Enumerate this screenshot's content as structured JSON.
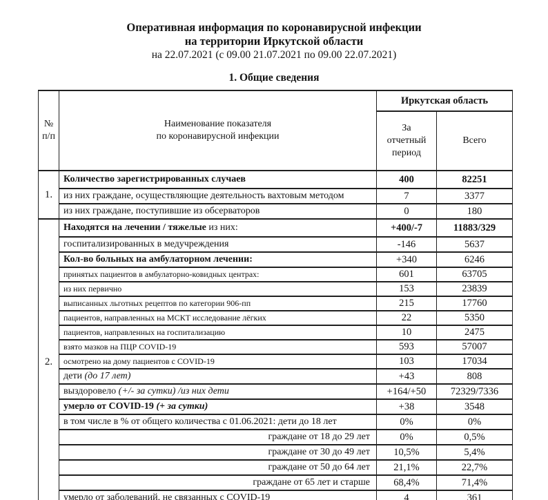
{
  "title": {
    "line1": "Оперативная информация по коронавирусной инфекции",
    "line2": "на территории Иркутской области",
    "line3": "на 22.07.2021 (с 09.00 21.07.2021 по 09.00 22.07.2021)",
    "section_heading": "1. Общие сведения"
  },
  "table": {
    "header": {
      "col_number": "№\nп/п",
      "col_name": "Наименование показателя\nпо коронавирусной инфекции",
      "region": "Иркутская область",
      "col_period": "За\nотчетный\nпериод",
      "col_total": "Всего"
    },
    "sections": [
      {
        "number": "1.",
        "rows": [
          {
            "label": [
              {
                "t": "Количество зарегистрированных случаев",
                "b": true
              }
            ],
            "period": "400",
            "total": "82251",
            "values_bold": true
          },
          {
            "label": [
              {
                "t": "из них граждане, осуществляющие деятельность вахтовым методом"
              }
            ],
            "align": "justify",
            "period": "7",
            "total": "3377"
          },
          {
            "label": [
              {
                "t": "из них граждане, поступившие из обсерваторов"
              }
            ],
            "period": "0",
            "total": "180"
          }
        ]
      },
      {
        "number": "2.",
        "rows": [
          {
            "label": [
              {
                "t": "Находятся на лечении / тяжелые",
                "b": true
              },
              {
                "t": " из них:"
              }
            ],
            "period": "+400/-7",
            "total": "11883/329",
            "values_bold": true
          },
          {
            "label": [
              {
                "t": "госпитализированных в медучреждения"
              }
            ],
            "period": "-146",
            "total": "5637"
          },
          {
            "label": [
              {
                "t": "Кол-во больных на амбулаторном лечении:",
                "b": true
              }
            ],
            "period": "+340",
            "total": "6246"
          },
          {
            "label": [
              {
                "t": "принятых пациентов в амбулаторно-ковидных центрах:"
              }
            ],
            "size": "small",
            "period": "601",
            "total": "63705"
          },
          {
            "label": [
              {
                "t": "из них первично"
              }
            ],
            "size": "small",
            "period": "153",
            "total": "23839"
          },
          {
            "label": [
              {
                "t": "выписанных льготных рецептов по категории 906-пп"
              }
            ],
            "size": "small",
            "period": "215",
            "total": "17760"
          },
          {
            "label": [
              {
                "t": "пациентов, направленных на МСКТ исследование лёгких"
              }
            ],
            "size": "small",
            "period": "22",
            "total": "5350"
          },
          {
            "label": [
              {
                "t": "пациентов, направленных на госпитализацию"
              }
            ],
            "size": "small",
            "period": "10",
            "total": "2475"
          },
          {
            "label": [
              {
                "t": "взято мазков на ПЦР COVID-19"
              }
            ],
            "size": "small",
            "period": "593",
            "total": "57007"
          },
          {
            "label": [
              {
                "t": "осмотрено на дому пациентов с COVID-19"
              }
            ],
            "size": "small",
            "period": "103",
            "total": "17034"
          },
          {
            "label": [
              {
                "t": "дети "
              },
              {
                "t": "(до 17 лет)",
                "i": true
              }
            ],
            "period": "+43",
            "total": "808"
          },
          {
            "label": [
              {
                "t": "выздоровело "
              },
              {
                "t": "(+/- за сутки) /из них дети",
                "i": true
              }
            ],
            "period": "+164/+50",
            "total": "72329/7336"
          },
          {
            "label": [
              {
                "t": "умерло от COVID-19 ",
                "b": true
              },
              {
                "t": "(+ за сутки)",
                "b": true,
                "i": true
              }
            ],
            "period": "+38",
            "total": "3548"
          },
          {
            "label": [
              {
                "t": "в том числе в % от общего количества с 01.06.2021: дети до 18 лет"
              }
            ],
            "period": "0%",
            "total": "0%"
          },
          {
            "label": [
              {
                "t": "граждане от 18 до 29 лет"
              }
            ],
            "align": "right",
            "period": "0%",
            "total": "0,5%"
          },
          {
            "label": [
              {
                "t": "граждане от 30 до 49 лет"
              }
            ],
            "align": "right",
            "period": "10,5%",
            "total": "5,4%"
          },
          {
            "label": [
              {
                "t": "граждане от 50 до 64 лет"
              }
            ],
            "align": "right",
            "period": "21,1%",
            "total": "22,7%"
          },
          {
            "label": [
              {
                "t": "граждане от 65 лет и старше"
              }
            ],
            "align": "right",
            "period": "68,4%",
            "total": "71,4%"
          },
          {
            "label": [
              {
                "t": "умерло от заболеваний, не связанных с COVID-19"
              }
            ],
            "period": "4",
            "total": "361"
          }
        ]
      }
    ]
  }
}
